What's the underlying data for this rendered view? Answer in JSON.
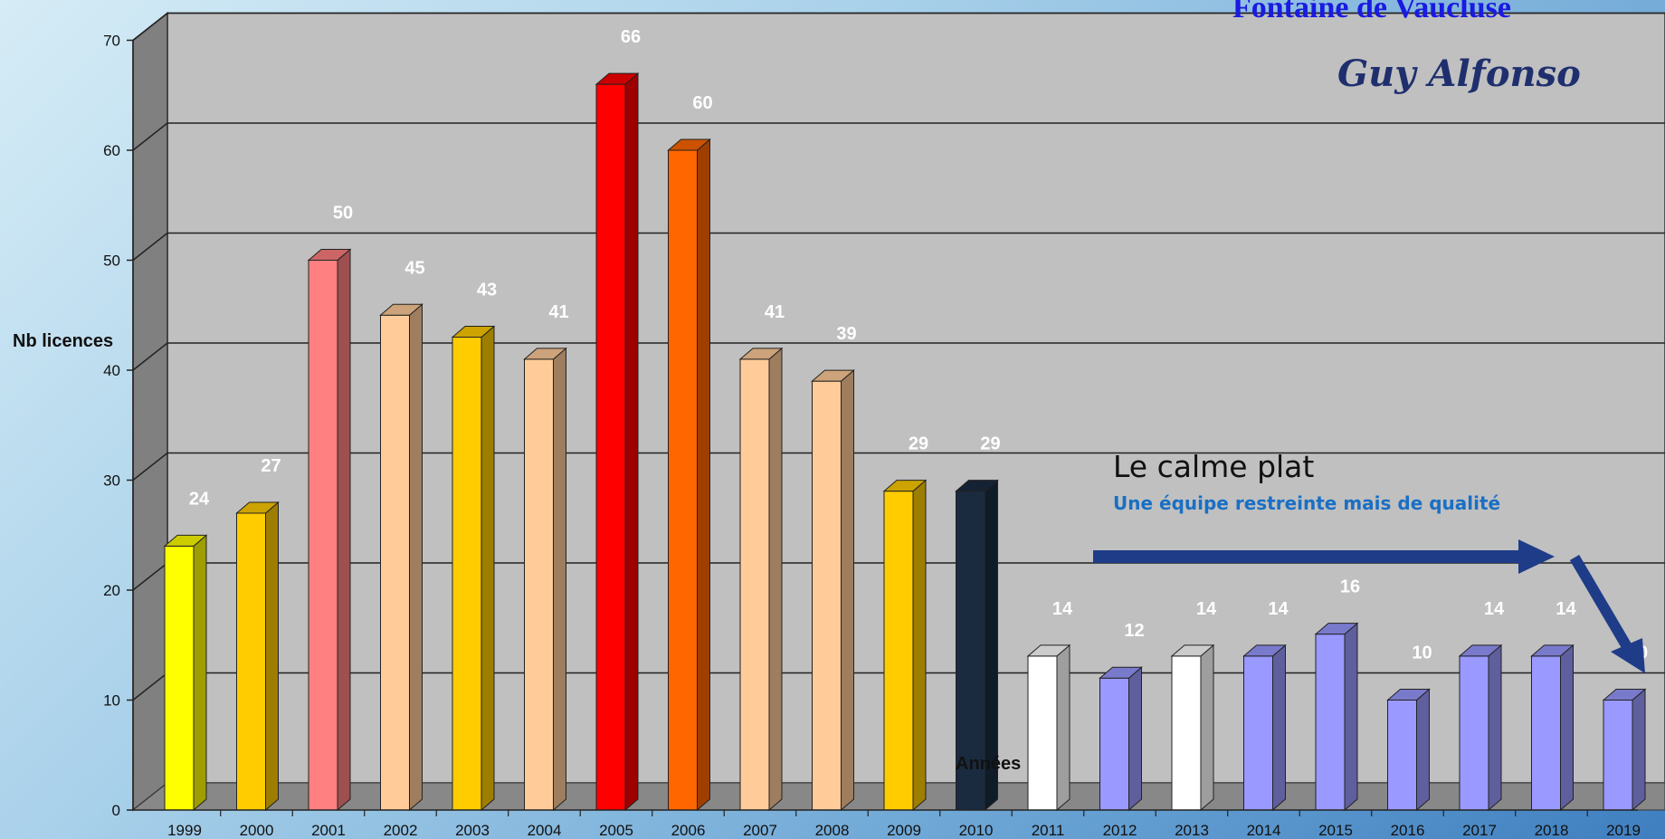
{
  "chart_data": {
    "type": "bar",
    "title": "Fontaine de Vaucluse",
    "subtitle": "Guy Alfonso",
    "xlabel": "Années",
    "ylabel": "Nb licences",
    "ylim": [
      0,
      70
    ],
    "yticks": [
      "0",
      "10",
      "20",
      "30",
      "40",
      "50",
      "60",
      "70"
    ],
    "grid": true,
    "categories": [
      "1999",
      "2000",
      "2001",
      "2002",
      "2003",
      "2004",
      "2005",
      "2006",
      "2007",
      "2008",
      "2009",
      "2010",
      "2011",
      "2012",
      "2013",
      "2014",
      "2015",
      "2016",
      "2017",
      "2018",
      "2019"
    ],
    "values": [
      24,
      27,
      50,
      45,
      43,
      41,
      66,
      60,
      41,
      39,
      29,
      29,
      14,
      12,
      14,
      14,
      16,
      10,
      14,
      14,
      10
    ],
    "bar_colors": [
      "#ffff00",
      "#ffcc00",
      "#ff8080",
      "#ffcc99",
      "#ffcc00",
      "#ffcc99",
      "#ff0000",
      "#ff6600",
      "#ffcc99",
      "#ffcc99",
      "#ffcc00",
      "#1a2b40",
      "#ffffff",
      "#9999ff",
      "#ffffff",
      "#9999ff",
      "#9999ff",
      "#9999ff",
      "#9999ff",
      "#9999ff",
      "#9999ff"
    ],
    "annotations": {
      "headline": "Le calme plat",
      "subline": "Une équipe restreinte mais de qualité"
    }
  },
  "colors": {
    "wall": "#c0c0c0",
    "side_wall": "#808080",
    "floor": "#888888",
    "value_label": "#ffffff",
    "arrow": "#1f3c88"
  }
}
